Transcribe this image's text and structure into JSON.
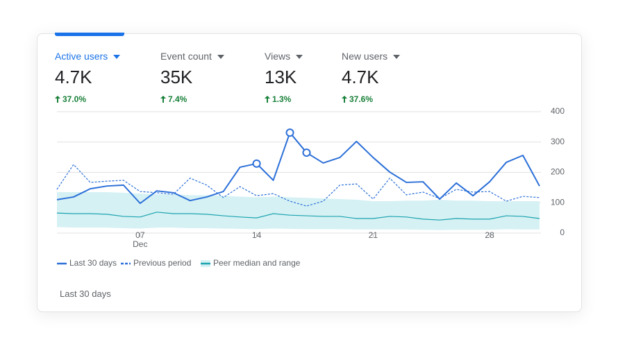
{
  "metrics": [
    {
      "label": "Active users",
      "value": "4.7K",
      "change": "37.0%"
    },
    {
      "label": "Event count",
      "value": "35K",
      "change": "7.4%"
    },
    {
      "label": "Views",
      "value": "13K",
      "change": "1.3%"
    },
    {
      "label": "New users",
      "value": "4.7K",
      "change": "37.6%"
    }
  ],
  "chart_data": {
    "type": "line",
    "x": [
      2,
      3,
      4,
      5,
      6,
      7,
      8,
      9,
      10,
      11,
      12,
      13,
      14,
      15,
      16,
      17,
      18,
      19,
      20,
      21,
      22,
      23,
      24,
      25,
      26,
      27,
      28,
      29,
      30,
      31
    ],
    "x_month_label": "Dec",
    "xlim": [
      2,
      31
    ],
    "xticks": [
      {
        "value": 7,
        "label": "07"
      },
      14,
      21,
      28
    ],
    "ylim": [
      0,
      400
    ],
    "yticks": [
      0,
      100,
      200,
      300,
      400
    ],
    "grid": true,
    "series": [
      {
        "name": "Last 30 days",
        "color": "#2b6fd8",
        "dash": false,
        "highlighted_points": [
          12,
          14,
          15
        ],
        "values": [
          110,
          119,
          146,
          155,
          158,
          98,
          139,
          133,
          107,
          119,
          137,
          217,
          229,
          174,
          331,
          265,
          231,
          249,
          302,
          249,
          201,
          167,
          169,
          112,
          165,
          123,
          169,
          233,
          256,
          155
        ]
      },
      {
        "name": "Previous period",
        "color": "#2b6fd8",
        "dash": true,
        "values": [
          144,
          226,
          167,
          171,
          174,
          137,
          133,
          128,
          181,
          158,
          117,
          153,
          123,
          130,
          105,
          89,
          105,
          158,
          162,
          112,
          181,
          126,
          135,
          114,
          144,
          135,
          137,
          105,
          121,
          117
        ]
      },
      {
        "name": "Peer median and range",
        "color": "#1ba3ae",
        "band_color": "#d5f1f4",
        "dash": false,
        "values": [
          66,
          64,
          64,
          62,
          55,
          53,
          69,
          64,
          64,
          62,
          57,
          53,
          50,
          64,
          59,
          57,
          55,
          55,
          48,
          48,
          55,
          53,
          46,
          43,
          48,
          46,
          46,
          57,
          55,
          48
        ],
        "range_high": [
          135,
          135,
          135,
          135,
          133,
          130,
          128,
          128,
          125,
          125,
          123,
          120,
          118,
          120,
          118,
          116,
          114,
          112,
          110,
          105,
          105,
          107,
          107,
          110,
          107,
          107,
          105,
          105,
          105,
          105
        ],
        "range_low": [
          20,
          18,
          18,
          18,
          16,
          15,
          18,
          18,
          16,
          16,
          15,
          14,
          13,
          15,
          14,
          13,
          13,
          13,
          12,
          12,
          12,
          12,
          11,
          10,
          11,
          11,
          11,
          13,
          12,
          12
        ]
      }
    ]
  },
  "footer": "Last 30 days"
}
